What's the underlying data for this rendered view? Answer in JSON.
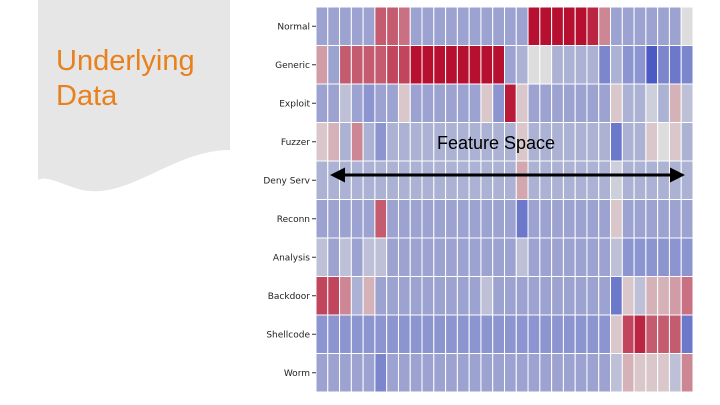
{
  "slide": {
    "title_line1": "Underlying",
    "title_line2": "Data",
    "title_color": "#e8811c"
  },
  "annotation": {
    "label": "Feature Space"
  },
  "chart_data": {
    "type": "heatmap",
    "rows": [
      "Normal",
      "Generic",
      "Exploit",
      "Fuzzer",
      "Deny Serv",
      "Reconn",
      "Analysis",
      "Backdoor",
      "Shellcode",
      "Worm"
    ],
    "colormap": "coolwarm",
    "value_range": [
      -1,
      1
    ],
    "values": [
      [
        -0.4,
        -0.4,
        -0.4,
        -0.4,
        -0.4,
        0.6,
        0.6,
        0.5,
        -0.4,
        -0.4,
        -0.4,
        -0.4,
        -0.4,
        -0.4,
        -0.4,
        -0.4,
        -0.4,
        -0.4,
        0.95,
        0.95,
        0.95,
        0.95,
        0.95,
        0.85,
        0.4,
        -0.4,
        -0.4,
        -0.4,
        -0.4,
        -0.4,
        -0.4,
        0
      ],
      [
        0.3,
        -0.4,
        0.6,
        0.6,
        0.6,
        0.6,
        0.7,
        0.7,
        0.95,
        0.95,
        0.95,
        0.95,
        0.95,
        0.95,
        0.95,
        0.95,
        -0.4,
        -0.3,
        0,
        0,
        -0.3,
        -0.3,
        -0.3,
        -0.3,
        -0.6,
        -0.3,
        -0.5,
        -0.5,
        -0.9,
        -0.6,
        -0.7,
        -0.6
      ],
      [
        -0.4,
        -0.4,
        -0.2,
        -0.4,
        -0.5,
        -0.4,
        -0.4,
        0.1,
        -0.4,
        -0.4,
        -0.4,
        -0.4,
        -0.4,
        -0.4,
        0.1,
        -0.5,
        0.9,
        0.1,
        -0.4,
        -0.4,
        -0.4,
        -0.4,
        -0.4,
        -0.4,
        -0.4,
        0.1,
        -0.3,
        -0.3,
        -0.1,
        -0.3,
        0.2,
        -0.2
      ],
      [
        0.1,
        0.2,
        -0.3,
        0.4,
        -0.3,
        -0.5,
        -0.3,
        -0.3,
        -0.3,
        -0.3,
        -0.3,
        -0.3,
        -0.3,
        -0.3,
        -0.3,
        -0.3,
        -0.3,
        0.1,
        -0.3,
        -0.3,
        -0.3,
        -0.3,
        -0.3,
        -0.3,
        -0.3,
        -0.7,
        -0.3,
        -0.3,
        0.1,
        0,
        0.1,
        -0.3
      ],
      [
        -0.3,
        -0.3,
        -0.3,
        -0.3,
        -0.3,
        -0.3,
        -0.3,
        -0.3,
        -0.3,
        -0.3,
        -0.3,
        -0.3,
        -0.3,
        -0.3,
        -0.3,
        -0.3,
        -0.3,
        0.25,
        -0.3,
        -0.3,
        -0.3,
        -0.3,
        -0.3,
        -0.3,
        -0.3,
        -0.1,
        -0.3,
        -0.3,
        -0.3,
        -0.3,
        -0.3,
        -0.3
      ],
      [
        -0.4,
        -0.4,
        -0.4,
        -0.4,
        -0.4,
        0.6,
        -0.4,
        -0.4,
        -0.4,
        -0.4,
        -0.4,
        -0.4,
        -0.4,
        -0.4,
        -0.4,
        -0.4,
        -0.4,
        -0.7,
        -0.4,
        -0.4,
        -0.4,
        -0.4,
        -0.4,
        -0.4,
        -0.4,
        0.1,
        -0.4,
        -0.4,
        -0.4,
        -0.4,
        -0.4,
        -0.4
      ],
      [
        -0.2,
        -0.4,
        -0.2,
        -0.4,
        -0.2,
        -0.2,
        -0.4,
        -0.4,
        -0.4,
        -0.4,
        -0.4,
        -0.4,
        -0.4,
        -0.4,
        -0.4,
        -0.4,
        -0.4,
        -0.2,
        -0.4,
        -0.4,
        -0.4,
        -0.4,
        -0.4,
        -0.4,
        -0.4,
        -0.2,
        -0.5,
        -0.5,
        -0.5,
        -0.5,
        -0.5,
        -0.5
      ],
      [
        0.7,
        0.7,
        0.4,
        -0.3,
        0.2,
        -0.4,
        -0.4,
        -0.4,
        -0.4,
        -0.4,
        -0.4,
        -0.4,
        -0.4,
        -0.4,
        -0.2,
        -0.4,
        -0.4,
        -0.4,
        -0.4,
        -0.4,
        -0.4,
        -0.4,
        -0.4,
        -0.4,
        -0.4,
        -0.7,
        0.1,
        -0.2,
        0.2,
        0.2,
        0.3,
        0.5
      ],
      [
        -0.5,
        -0.5,
        -0.5,
        -0.5,
        -0.5,
        -0.5,
        -0.5,
        -0.5,
        -0.5,
        -0.5,
        -0.5,
        -0.5,
        -0.5,
        -0.5,
        -0.5,
        -0.5,
        -0.5,
        -0.5,
        -0.5,
        -0.5,
        -0.5,
        -0.5,
        -0.5,
        -0.5,
        -0.5,
        0.1,
        0.7,
        0.85,
        0.6,
        0.6,
        0.6,
        -0.7
      ],
      [
        -0.4,
        -0.4,
        -0.4,
        -0.4,
        -0.4,
        -0.6,
        -0.4,
        -0.4,
        -0.4,
        -0.4,
        -0.4,
        -0.4,
        -0.4,
        -0.4,
        -0.4,
        -0.4,
        -0.4,
        -0.4,
        -0.4,
        -0.4,
        -0.4,
        -0.4,
        -0.4,
        -0.4,
        -0.4,
        -0.2,
        0.2,
        0.1,
        0.1,
        0.1,
        -0.2,
        0.4
      ]
    ]
  }
}
